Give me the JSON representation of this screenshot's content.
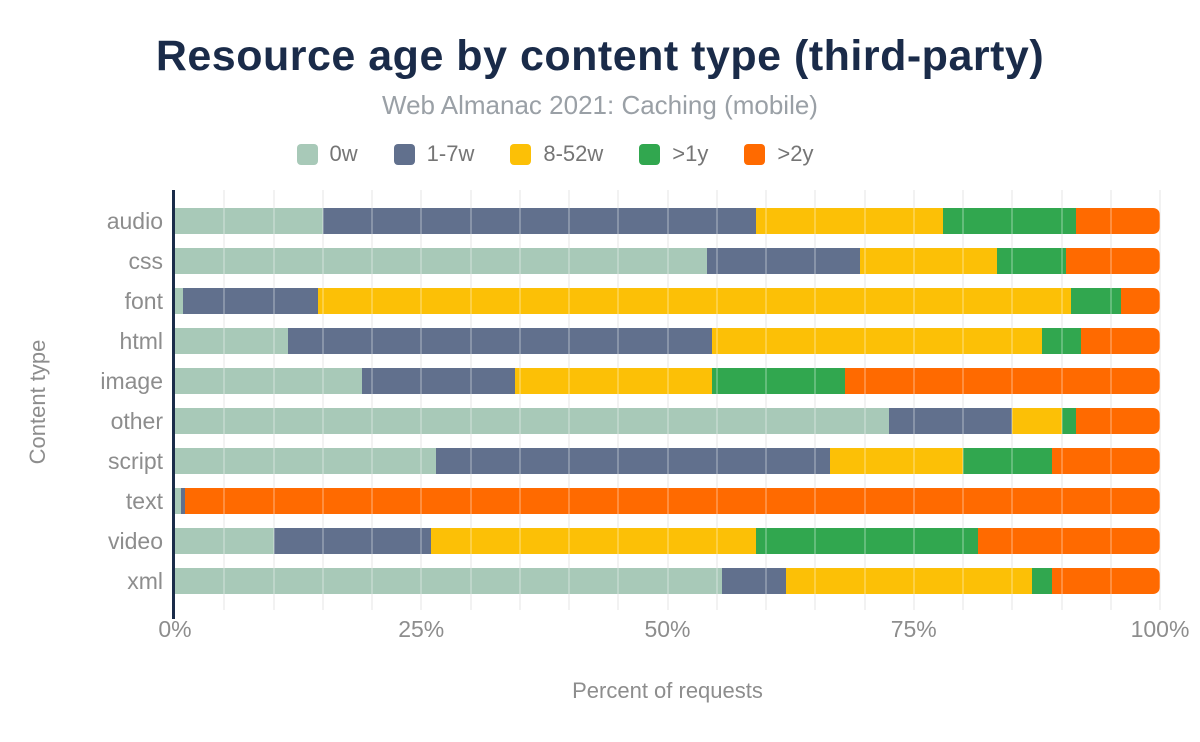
{
  "title": "Resource age by content type (third-party)",
  "subtitle": "Web Almanac 2021: Caching (mobile)",
  "colors": {
    "title_navy": "#1a2b49",
    "subtitle_gray": "#9aa0a6",
    "axis_text_gray": "#8d8d8d",
    "legend_text_gray": "#757575",
    "gridline": "#eeeeee",
    "series_0w": "#a8c9b8",
    "series_1_7w": "#61708d",
    "series_8_52w": "#fcc006",
    "series_gt1y": "#31a74f",
    "series_gt2y": "#ff6a00"
  },
  "chart_data": {
    "type": "bar",
    "orientation": "horizontal",
    "stacked": true,
    "title": "Resource age by content type (third-party)",
    "subtitle": "Web Almanac 2021: Caching (mobile)",
    "xlabel": "Percent of requests",
    "ylabel": "Content type",
    "xlim": [
      0,
      100
    ],
    "grid_step_percent": 5,
    "legend_position": "top",
    "x_ticks": [
      {
        "value": 0,
        "label": "0%"
      },
      {
        "value": 25,
        "label": "25%"
      },
      {
        "value": 50,
        "label": "50%"
      },
      {
        "value": 75,
        "label": "75%"
      },
      {
        "value": 100,
        "label": "100%"
      }
    ],
    "categories": [
      "audio",
      "css",
      "font",
      "html",
      "image",
      "other",
      "script",
      "text",
      "video",
      "xml"
    ],
    "series": [
      {
        "name": "0w",
        "color": "#a8c9b8",
        "values": [
          15,
          54,
          0.8,
          11.5,
          19,
          72.5,
          26.5,
          0.6,
          10,
          55.5
        ]
      },
      {
        "name": "1-7w",
        "color": "#61708d",
        "values": [
          44,
          15.5,
          13.7,
          43,
          15.5,
          12.5,
          40,
          0.4,
          16,
          6.5
        ]
      },
      {
        "name": "8-52w",
        "color": "#fcc006",
        "values": [
          19,
          14,
          76.5,
          33.5,
          20,
          5,
          13.5,
          0,
          33,
          25
        ]
      },
      {
        "name": ">1y",
        "color": "#31a74f",
        "values": [
          13.5,
          7,
          5,
          4,
          13.5,
          1.5,
          9,
          0,
          22.5,
          2
        ]
      },
      {
        "name": ">2y",
        "color": "#ff6a00",
        "values": [
          8.5,
          9.5,
          4,
          8,
          32,
          8.5,
          11,
          99,
          18.5,
          11
        ]
      }
    ]
  }
}
